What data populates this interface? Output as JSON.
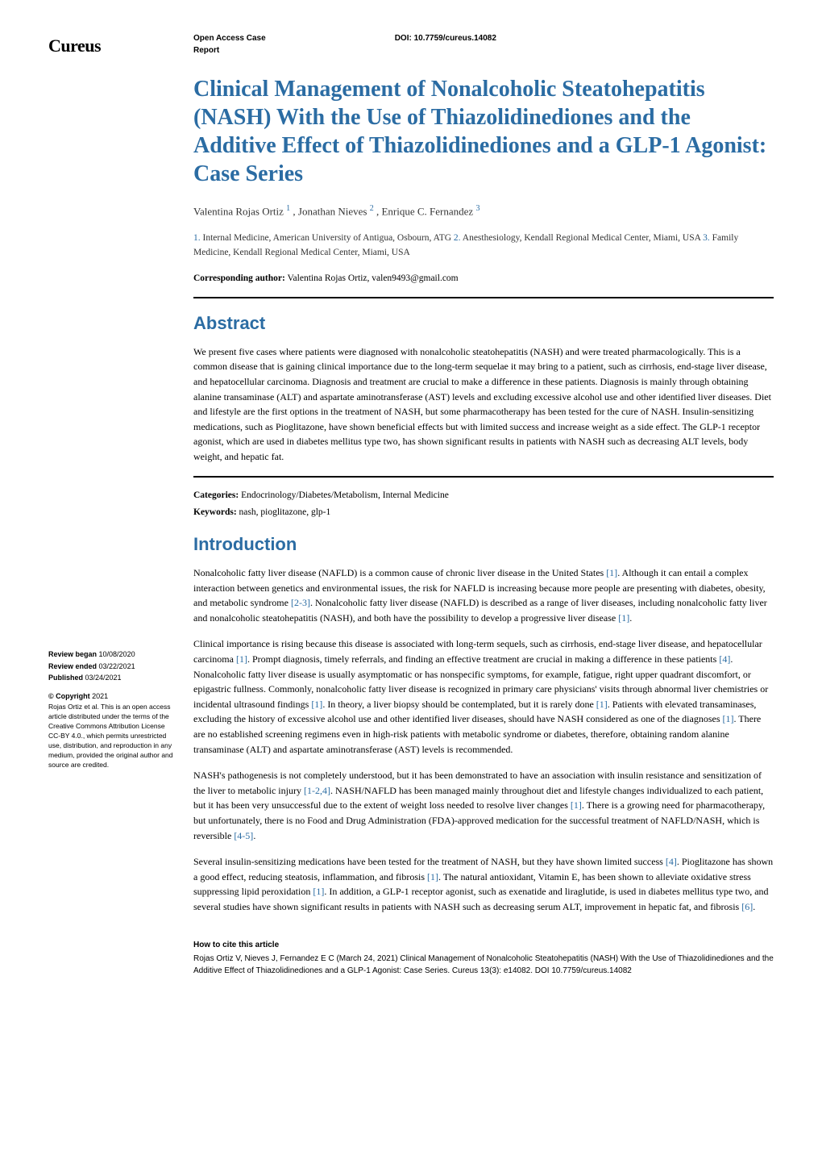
{
  "header": {
    "logo": "Cureus",
    "article_type_line1": "Open Access Case",
    "article_type_line2": "Report",
    "doi_label": "DOI:",
    "doi_value": "10.7759/cureus.14082"
  },
  "title": "Clinical Management of Nonalcoholic Steatohepatitis (NASH) With the Use of Thiazolidinediones and the Additive Effect of Thiazolidinediones and a GLP-1 Agonist: Case Series",
  "authors_html": "Valentina Rojas Ortiz <sup>1</sup> , Jonathan Nieves <sup>2</sup> , Enrique C. Fernandez <sup>3</sup>",
  "affiliations": {
    "a1_num": "1.",
    "a1": " Internal Medicine, American University of Antigua, Osbourn, ATG  ",
    "a2_num": "2.",
    "a2": " Anesthesiology, Kendall Regional Medical Center, Miami, USA ",
    "a3_num": "3.",
    "a3": " Family Medicine, Kendall Regional Medical Center, Miami, USA"
  },
  "corresponding_label": "Corresponding author:",
  "corresponding_value": " Valentina Rojas Ortiz, valen9493@gmail.com",
  "abstract": {
    "heading": "Abstract",
    "body": "We present five cases where patients were diagnosed with nonalcoholic steatohepatitis (NASH) and were treated pharmacologically. This is a common disease that is gaining clinical importance due to the long-term sequelae it may bring to a patient, such as cirrhosis, end-stage liver disease, and hepatocellular carcinoma. Diagnosis and treatment are crucial to make a difference in these patients. Diagnosis is mainly through obtaining alanine transaminase (ALT) and aspartate aminotransferase (AST) levels and excluding excessive alcohol use and other identified liver diseases. Diet and lifestyle are the first options in the treatment of NASH, but some pharmacotherapy has been tested for the cure of NASH. Insulin-sensitizing medications, such as Pioglitazone, have shown beneficial effects but with limited success and increase weight as a side effect. The GLP-1 receptor agonist, which are used in diabetes mellitus type two, has shown significant results in patients with NASH such as decreasing ALT levels, body weight, and hepatic fat."
  },
  "categories_label": "Categories:",
  "categories_value": " Endocrinology/Diabetes/Metabolism, Internal Medicine",
  "keywords_label": "Keywords:",
  "keywords_value": " nash, pioglitazone, glp-1",
  "intro": {
    "heading": "Introduction",
    "p1a": "Nonalcoholic fatty liver disease (NAFLD) is a common cause of chronic liver disease in the United States ",
    "p1c1": " [1]",
    "p1b": ". Although it can entail a complex interaction between genetics and environmental issues, the risk for NAFLD is increasing because more people are presenting with diabetes, obesity, and metabolic syndrome ",
    "p1c2": "[2-3]",
    "p1c": ". Nonalcoholic fatty liver disease (NAFLD) is described as a range of liver diseases, including nonalcoholic fatty liver and nonalcoholic steatohepatitis (NASH), and both have the possibility to develop a progressive liver disease ",
    "p1c3": "[1]",
    "p1d": ".",
    "p2a": "Clinical importance is rising because this disease is associated with long-term sequels, such as cirrhosis, end-stage liver disease, and hepatocellular carcinoma ",
    "p2c1": "[1]",
    "p2b": ". Prompt diagnosis, timely referrals, and finding an effective treatment are crucial in making a difference in these patients ",
    "p2c2": "[4]",
    "p2c": ". Nonalcoholic fatty liver disease is usually asymptomatic or has nonspecific symptoms, for example, fatigue, right upper quadrant discomfort, or epigastric fullness. Commonly, nonalcoholic fatty liver disease is recognized in primary care physicians' visits through abnormal liver chemistries or incidental ultrasound findings ",
    "p2c3": "[1]",
    "p2d": ". In theory, a liver biopsy should be contemplated, but it is rarely done ",
    "p2c4": "[1]",
    "p2e": ". Patients with elevated transaminases, excluding the history of excessive alcohol use and other identified liver diseases, should have NASH considered as one of the diagnoses ",
    "p2c5": "[1]",
    "p2f": ". There are no established screening regimens even in high-risk patients with metabolic syndrome or diabetes, therefore, obtaining random alanine transaminase (ALT) and aspartate aminotransferase (AST) levels is recommended.",
    "p3a": "NASH's pathogenesis is not completely understood, but it has been demonstrated to have an association with insulin resistance and sensitization of the liver to metabolic injury ",
    "p3c1": "[1-2,4]",
    "p3b": ". NASH/NAFLD has been managed mainly throughout diet and lifestyle changes individualized to each patient, but it has been very unsuccessful due to the extent of weight loss needed to resolve liver changes ",
    "p3c2": "[1]",
    "p3c": ". There is a growing need for pharmacotherapy, but unfortunately, there is no Food and Drug Administration (FDA)-approved medication for the successful treatment of NAFLD/NASH, which is reversible ",
    "p3c3": "[4-5]",
    "p3d": ".",
    "p4a": "Several insulin-sensitizing medications have been tested for the treatment of NASH, but they have shown limited success ",
    "p4c1": "[4]",
    "p4b": ". Pioglitazone has shown a good effect, reducing steatosis, inflammation, and fibrosis ",
    "p4c2": "[1]",
    "p4c": ". The natural antioxidant, Vitamin E, has been shown to alleviate oxidative stress suppressing lipid peroxidation ",
    "p4c3": "[1]",
    "p4d": ". In addition, a GLP-1 receptor agonist, such as exenatide and liraglutide, is used in diabetes mellitus type two, and several studies have shown significant results in patients with NASH such as decreasing serum ALT, improvement in hepatic fat, and fibrosis ",
    "p4c4": "[6]",
    "p4e": "."
  },
  "sidebar": {
    "review_began_label": "Review began",
    "review_began_value": " 10/08/2020",
    "review_ended_label": "Review ended",
    "review_ended_value": " 03/22/2021",
    "published_label": "Published",
    "published_value": " 03/24/2021",
    "copyright_head": "© Copyright",
    "copyright_year": " 2021",
    "copyright_body": "Rojas Ortiz et al. This is an open access article distributed under the terms of the Creative Commons Attribution License CC-BY 4.0., which permits unrestricted use, distribution, and reproduction in any medium, provided the original author and source are credited."
  },
  "footer": {
    "cite_head": "How to cite this article",
    "cite_body": "Rojas Ortiz V, Nieves J, Fernandez E C (March 24, 2021) Clinical Management of Nonalcoholic Steatohepatitis (NASH) With the Use of Thiazolidinediones and the Additive Effect of Thiazolidinediones and a GLP-1 Agonist: Case Series. Cureus 13(3): e14082. DOI 10.7759/cureus.14082"
  },
  "colors": {
    "link": "#2b6ca3",
    "text": "#000000",
    "bg": "#ffffff"
  }
}
